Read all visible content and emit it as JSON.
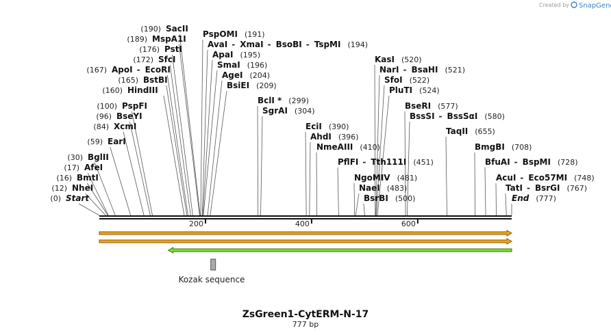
{
  "credit": {
    "prefix": "Created by",
    "brand": "SnapGene"
  },
  "sequence": {
    "name": "ZsGreen1-CytERM-N-17",
    "length_label": "777 bp",
    "length": 777
  },
  "ruler_ticks": [
    {
      "value": 200,
      "label": "200"
    },
    {
      "value": 400,
      "label": "400"
    },
    {
      "value": 600,
      "label": "600"
    }
  ],
  "sites": [
    {
      "names": [
        "Start"
      ],
      "pos": 0,
      "pos_label": "(0)",
      "italic": true
    },
    {
      "names": [
        "NheI"
      ],
      "pos": 12,
      "pos_label": "(12)"
    },
    {
      "names": [
        "BmtI"
      ],
      "pos": 16,
      "pos_label": "(16)"
    },
    {
      "names": [
        "AfeI"
      ],
      "pos": 17,
      "pos_label": "(17)"
    },
    {
      "names": [
        "BglII"
      ],
      "pos": 30,
      "pos_label": "(30)"
    },
    {
      "names": [
        "EarI"
      ],
      "pos": 59,
      "pos_label": "(59)"
    },
    {
      "names": [
        "XcmI"
      ],
      "pos": 84,
      "pos_label": "(84)"
    },
    {
      "names": [
        "BseYI"
      ],
      "pos": 96,
      "pos_label": "(96)"
    },
    {
      "names": [
        "PspFI"
      ],
      "pos": 100,
      "pos_label": "(100)"
    },
    {
      "names": [
        "HindIII"
      ],
      "pos": 160,
      "pos_label": "(160)"
    },
    {
      "names": [
        "BstBI"
      ],
      "pos": 165,
      "pos_label": "(165)"
    },
    {
      "names": [
        "ApoI",
        "EcoRI"
      ],
      "pos": 167,
      "pos_label": "(167)"
    },
    {
      "names": [
        "SfcI"
      ],
      "pos": 172,
      "pos_label": "(172)"
    },
    {
      "names": [
        "PstI"
      ],
      "pos": 176,
      "pos_label": "(176)"
    },
    {
      "names": [
        "MspA1I"
      ],
      "pos": 189,
      "pos_label": "(189)"
    },
    {
      "names": [
        "SacII"
      ],
      "pos": 190,
      "pos_label": "(190)"
    },
    {
      "names": [
        "PspOMI"
      ],
      "pos": 191,
      "pos_label": "(191)"
    },
    {
      "names": [
        "AvaI",
        "XmaI",
        "BsoBI",
        "TspMI"
      ],
      "pos": 194,
      "pos_label": "(194)"
    },
    {
      "names": [
        "ApaI"
      ],
      "pos": 195,
      "pos_label": "(195)"
    },
    {
      "names": [
        "SmaI"
      ],
      "pos": 196,
      "pos_label": "(196)"
    },
    {
      "names": [
        "AgeI"
      ],
      "pos": 204,
      "pos_label": "(204)"
    },
    {
      "names": [
        "BsiEI"
      ],
      "pos": 209,
      "pos_label": "(209)"
    },
    {
      "names": [
        "BclI *"
      ],
      "pos": 299,
      "pos_label": "(299)"
    },
    {
      "names": [
        "SgrAI"
      ],
      "pos": 304,
      "pos_label": "(304)"
    },
    {
      "names": [
        "EciI"
      ],
      "pos": 390,
      "pos_label": "(390)"
    },
    {
      "names": [
        "AhdI"
      ],
      "pos": 396,
      "pos_label": "(396)"
    },
    {
      "names": [
        "NmeAIII"
      ],
      "pos": 410,
      "pos_label": "(410)"
    },
    {
      "names": [
        "PflFI",
        "Tth111I"
      ],
      "pos": 451,
      "pos_label": "(451)"
    },
    {
      "names": [
        "NgoMIV"
      ],
      "pos": 481,
      "pos_label": "(481)"
    },
    {
      "names": [
        "NaeI"
      ],
      "pos": 483,
      "pos_label": "(483)"
    },
    {
      "names": [
        "BsrBI"
      ],
      "pos": 500,
      "pos_label": "(500)"
    },
    {
      "names": [
        "KasI"
      ],
      "pos": 520,
      "pos_label": "(520)"
    },
    {
      "names": [
        "NarI",
        "BsaHI"
      ],
      "pos": 521,
      "pos_label": "(521)"
    },
    {
      "names": [
        "SfoI"
      ],
      "pos": 522,
      "pos_label": "(522)"
    },
    {
      "names": [
        "PluTI"
      ],
      "pos": 524,
      "pos_label": "(524)"
    },
    {
      "names": [
        "BseRI"
      ],
      "pos": 577,
      "pos_label": "(577)"
    },
    {
      "names": [
        "BssSI",
        "BssSαI"
      ],
      "pos": 580,
      "pos_label": "(580)"
    },
    {
      "names": [
        "TaqII"
      ],
      "pos": 655,
      "pos_label": "(655)"
    },
    {
      "names": [
        "BmgBI"
      ],
      "pos": 708,
      "pos_label": "(708)"
    },
    {
      "names": [
        "BfuAI",
        "BspMI"
      ],
      "pos": 728,
      "pos_label": "(728)"
    },
    {
      "names": [
        "AcuI",
        "Eco57MI"
      ],
      "pos": 748,
      "pos_label": "(748)"
    },
    {
      "names": [
        "TatI",
        "BsrGI"
      ],
      "pos": 767,
      "pos_label": "(767)"
    },
    {
      "names": [
        "End"
      ],
      "pos": 777,
      "pos_label": "(777)",
      "italic": true
    }
  ],
  "features": [
    {
      "name": "orange-feature-1",
      "start": 0,
      "end": 777,
      "direction": "forward",
      "color": "#f2a31e",
      "stroke": "#8a5a00"
    },
    {
      "name": "orange-feature-2",
      "start": 0,
      "end": 777,
      "direction": "forward",
      "color": "#f2a31e",
      "stroke": "#8a5a00"
    },
    {
      "name": "green-feature",
      "start": 130,
      "end": 777,
      "direction": "reverse",
      "color": "#86d93a",
      "stroke": "#2f7a00"
    }
  ],
  "kozak": {
    "label": "Kozak sequence",
    "start": 210,
    "end": 219,
    "color": "#aaaaaa"
  },
  "colors": {
    "backbone": "#111111",
    "leader": "#555555"
  }
}
